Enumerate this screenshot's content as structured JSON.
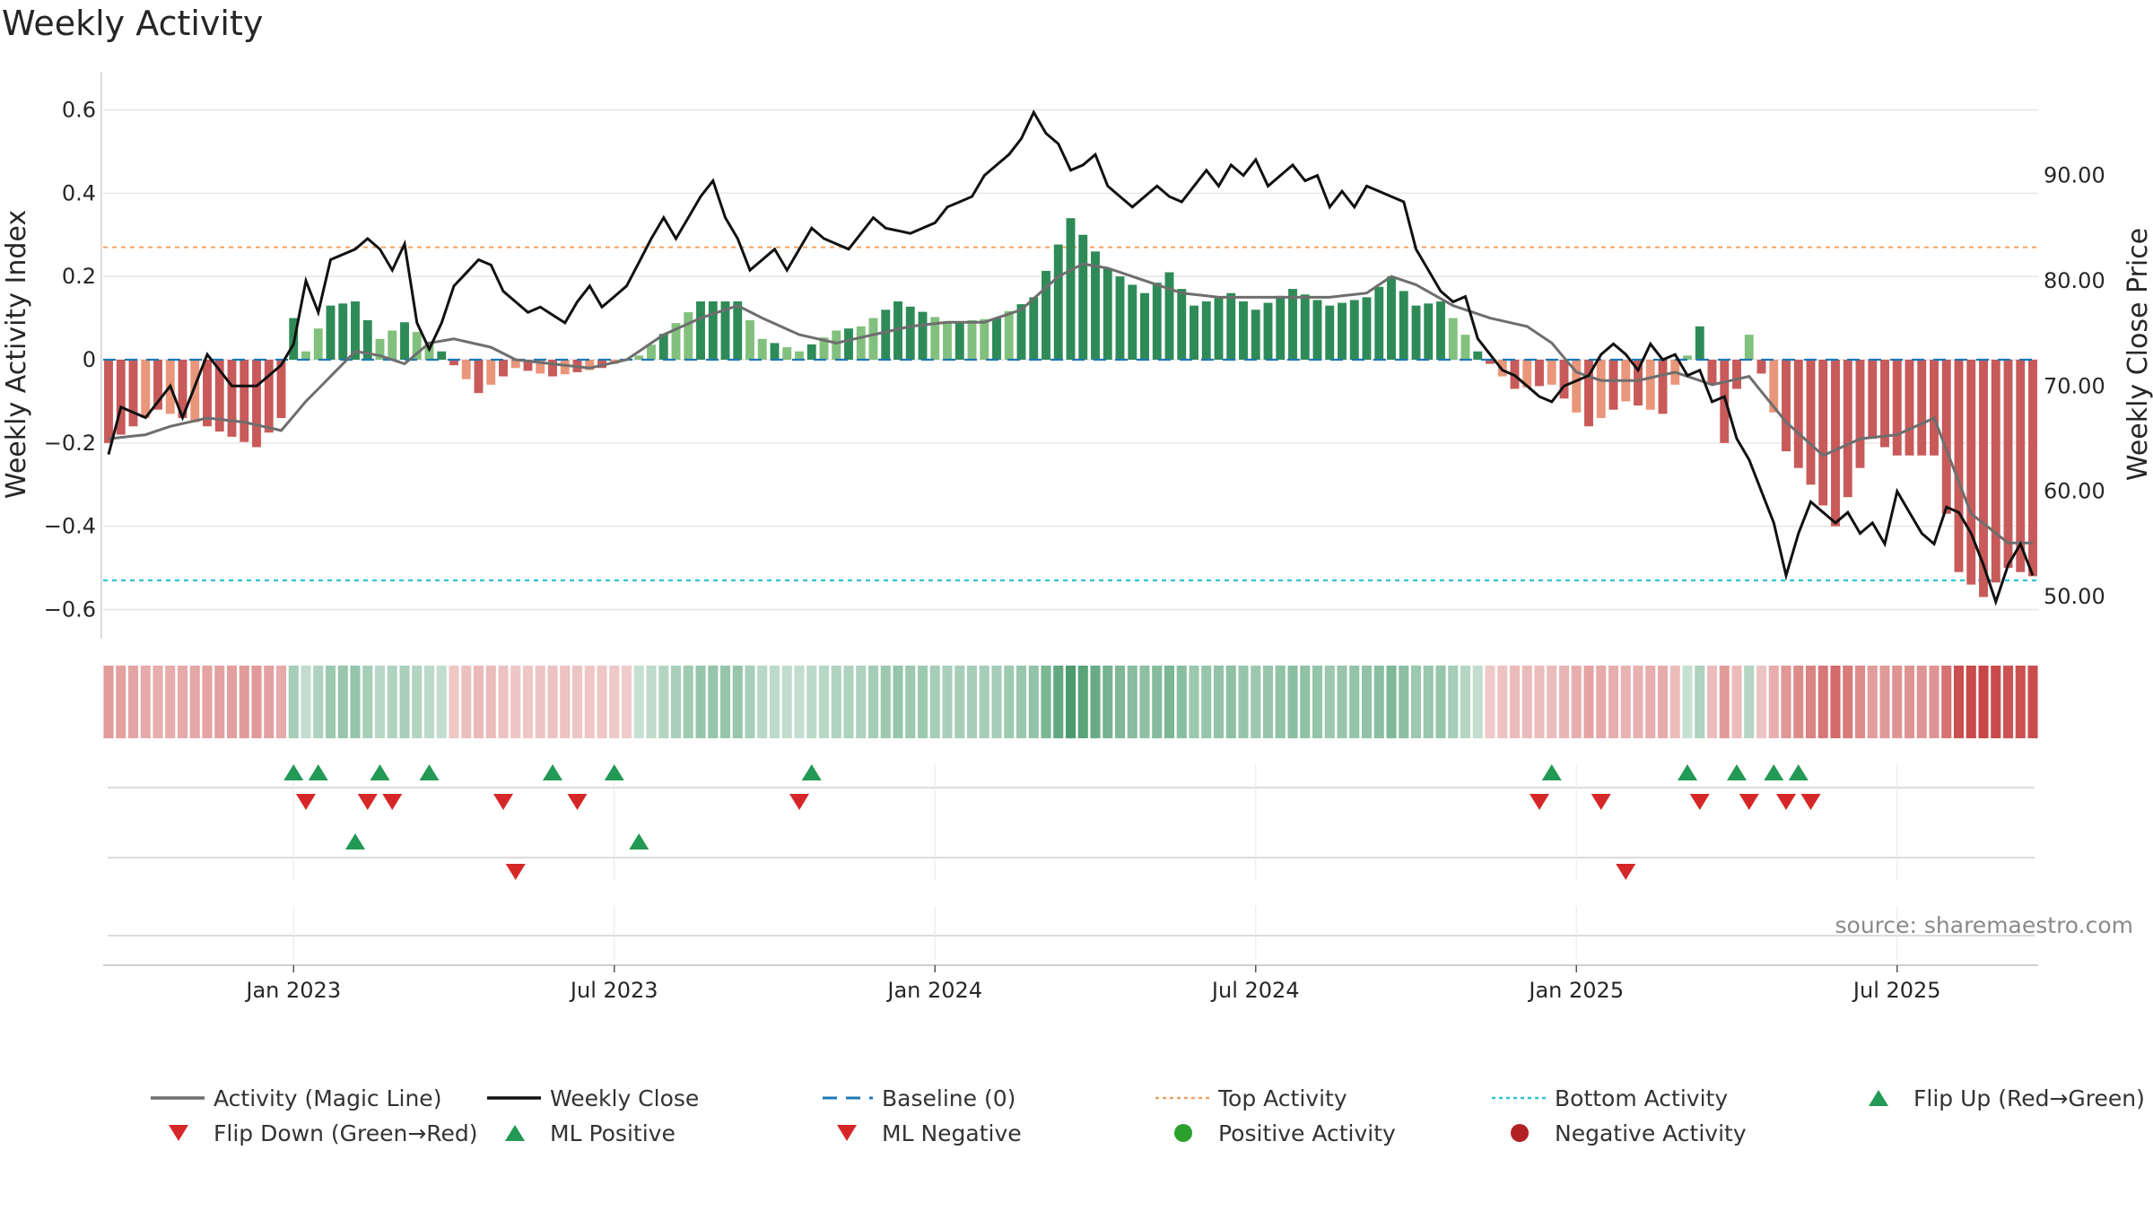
{
  "chart_data": {
    "type": "bar",
    "title": "Weekly Activity",
    "ylabel_left": "Weekly Activity Index",
    "ylabel_right": "Weekly Close Price",
    "ylim_left": [
      -0.67,
      0.67
    ],
    "ylim_right": [
      46.0,
      99.0
    ],
    "y_ticks_left": [
      {
        "v": 0.6,
        "label": "0.6"
      },
      {
        "v": 0.4,
        "label": "0.4"
      },
      {
        "v": 0.2,
        "label": "0.2"
      },
      {
        "v": 0,
        "label": "0"
      },
      {
        "v": -0.2,
        "label": "−0.2"
      },
      {
        "v": -0.4,
        "label": "−0.4"
      },
      {
        "v": -0.6,
        "label": "−0.6"
      }
    ],
    "y_ticks_right": [
      {
        "v": 90,
        "label": "90.00"
      },
      {
        "v": 80,
        "label": "80.00"
      },
      {
        "v": 70,
        "label": "70.00"
      },
      {
        "v": 60,
        "label": "60.00"
      },
      {
        "v": 50,
        "label": "50.00"
      }
    ],
    "x_ticks": [
      {
        "week": 15,
        "label": "Jan 2023"
      },
      {
        "week": 41,
        "label": "Jul 2023"
      },
      {
        "week": 67,
        "label": "Jan 2024"
      },
      {
        "week": 93,
        "label": "Jul 2024"
      },
      {
        "week": 119,
        "label": "Jan 2025"
      },
      {
        "week": 145,
        "label": "Jul 2025"
      }
    ],
    "weeks": 157,
    "top_activity": 0.27,
    "bottom_activity": -0.53,
    "baseline": 0,
    "anchors": {
      "activity": [
        [
          0,
          -0.2
        ],
        [
          4,
          -0.12
        ],
        [
          8,
          -0.16
        ],
        [
          12,
          -0.21
        ],
        [
          14,
          -0.14
        ],
        [
          15,
          0.1
        ],
        [
          16,
          0.02
        ],
        [
          18,
          0.13
        ],
        [
          20,
          0.14
        ],
        [
          22,
          0.05
        ],
        [
          24,
          0.09
        ],
        [
          27,
          0.02
        ],
        [
          30,
          -0.08
        ],
        [
          33,
          -0.02
        ],
        [
          36,
          -0.04
        ],
        [
          40,
          -0.02
        ],
        [
          43,
          0.01
        ],
        [
          48,
          0.14
        ],
        [
          51,
          0.14
        ],
        [
          53,
          0.05
        ],
        [
          56,
          0.02
        ],
        [
          59,
          0.07
        ],
        [
          61,
          0.08
        ],
        [
          64,
          0.14
        ],
        [
          68,
          0.09
        ],
        [
          72,
          0.1
        ],
        [
          75,
          0.15
        ],
        [
          78,
          0.34
        ],
        [
          81,
          0.22
        ],
        [
          84,
          0.16
        ],
        [
          86,
          0.21
        ],
        [
          88,
          0.13
        ],
        [
          91,
          0.16
        ],
        [
          93,
          0.12
        ],
        [
          96,
          0.17
        ],
        [
          99,
          0.13
        ],
        [
          102,
          0.15
        ],
        [
          104,
          0.2
        ],
        [
          106,
          0.13
        ],
        [
          108,
          0.14
        ],
        [
          111,
          0.02
        ],
        [
          114,
          -0.07
        ],
        [
          117,
          -0.06
        ],
        [
          120,
          -0.16
        ],
        [
          123,
          -0.1
        ],
        [
          126,
          -0.13
        ],
        [
          129,
          0.08
        ],
        [
          131,
          -0.2
        ],
        [
          133,
          0.06
        ],
        [
          136,
          -0.22
        ],
        [
          138,
          -0.3
        ],
        [
          140,
          -0.4
        ],
        [
          143,
          -0.19
        ],
        [
          145,
          -0.23
        ],
        [
          148,
          -0.23
        ],
        [
          150,
          -0.51
        ],
        [
          152,
          -0.57
        ],
        [
          154,
          -0.5
        ],
        [
          156,
          -0.52
        ]
      ],
      "magic": [
        [
          0,
          -0.19
        ],
        [
          3,
          -0.18
        ],
        [
          5,
          -0.16
        ],
        [
          8,
          -0.14
        ],
        [
          11,
          -0.15
        ],
        [
          14,
          -0.17
        ],
        [
          16,
          -0.1
        ],
        [
          18,
          -0.04
        ],
        [
          20,
          0.02
        ],
        [
          22,
          0.01
        ],
        [
          24,
          -0.01
        ],
        [
          26,
          0.04
        ],
        [
          28,
          0.05
        ],
        [
          31,
          0.03
        ],
        [
          33,
          0.0
        ],
        [
          36,
          -0.01
        ],
        [
          39,
          -0.02
        ],
        [
          42,
          0.0
        ],
        [
          45,
          0.06
        ],
        [
          48,
          0.1
        ],
        [
          51,
          0.13
        ],
        [
          53,
          0.1
        ],
        [
          56,
          0.06
        ],
        [
          59,
          0.04
        ],
        [
          62,
          0.06
        ],
        [
          65,
          0.08
        ],
        [
          68,
          0.09
        ],
        [
          71,
          0.09
        ],
        [
          74,
          0.12
        ],
        [
          77,
          0.2
        ],
        [
          79,
          0.23
        ],
        [
          81,
          0.22
        ],
        [
          84,
          0.19
        ],
        [
          87,
          0.16
        ],
        [
          90,
          0.15
        ],
        [
          93,
          0.15
        ],
        [
          96,
          0.15
        ],
        [
          99,
          0.15
        ],
        [
          102,
          0.16
        ],
        [
          104,
          0.2
        ],
        [
          106,
          0.18
        ],
        [
          109,
          0.13
        ],
        [
          112,
          0.1
        ],
        [
          115,
          0.08
        ],
        [
          117,
          0.04
        ],
        [
          119,
          -0.03
        ],
        [
          121,
          -0.05
        ],
        [
          124,
          -0.05
        ],
        [
          127,
          -0.03
        ],
        [
          130,
          -0.06
        ],
        [
          133,
          -0.04
        ],
        [
          136,
          -0.15
        ],
        [
          139,
          -0.23
        ],
        [
          142,
          -0.19
        ],
        [
          145,
          -0.18
        ],
        [
          148,
          -0.14
        ],
        [
          151,
          -0.37
        ],
        [
          154,
          -0.44
        ],
        [
          156,
          -0.44
        ]
      ],
      "close": [
        [
          0,
          63.5
        ],
        [
          1,
          68
        ],
        [
          3,
          67
        ],
        [
          5,
          70
        ],
        [
          6,
          67
        ],
        [
          8,
          73
        ],
        [
          10,
          70
        ],
        [
          12,
          70
        ],
        [
          14,
          72
        ],
        [
          15,
          74
        ],
        [
          16,
          80
        ],
        [
          17,
          77
        ],
        [
          18,
          82
        ],
        [
          20,
          83
        ],
        [
          21,
          84
        ],
        [
          22,
          83
        ],
        [
          23,
          81
        ],
        [
          24,
          83.5
        ],
        [
          25,
          76
        ],
        [
          26,
          73.5
        ],
        [
          27,
          76
        ],
        [
          28,
          79.5
        ],
        [
          30,
          82
        ],
        [
          31,
          81.5
        ],
        [
          32,
          79
        ],
        [
          34,
          77
        ],
        [
          35,
          77.5
        ],
        [
          37,
          76
        ],
        [
          38,
          78
        ],
        [
          39,
          79.5
        ],
        [
          40,
          77.5
        ],
        [
          42,
          79.5
        ],
        [
          44,
          84
        ],
        [
          45,
          86
        ],
        [
          46,
          84
        ],
        [
          47,
          86
        ],
        [
          48,
          88
        ],
        [
          49,
          89.5
        ],
        [
          50,
          86
        ],
        [
          51,
          84
        ],
        [
          52,
          81
        ],
        [
          54,
          83
        ],
        [
          55,
          81
        ],
        [
          57,
          85
        ],
        [
          58,
          84
        ],
        [
          60,
          83
        ],
        [
          62,
          86
        ],
        [
          63,
          85
        ],
        [
          65,
          84.5
        ],
        [
          67,
          85.5
        ],
        [
          68,
          87
        ],
        [
          70,
          88
        ],
        [
          71,
          90
        ],
        [
          72,
          91
        ],
        [
          73,
          92
        ],
        [
          74,
          93.5
        ],
        [
          75,
          96
        ],
        [
          76,
          94
        ],
        [
          77,
          93
        ],
        [
          78,
          90.5
        ],
        [
          79,
          91
        ],
        [
          80,
          92
        ],
        [
          81,
          89
        ],
        [
          82,
          88
        ],
        [
          83,
          87
        ],
        [
          84,
          88
        ],
        [
          85,
          89
        ],
        [
          86,
          88
        ],
        [
          87,
          87.5
        ],
        [
          88,
          89
        ],
        [
          89,
          90.5
        ],
        [
          90,
          89
        ],
        [
          91,
          91
        ],
        [
          92,
          90
        ],
        [
          93,
          91.5
        ],
        [
          94,
          89
        ],
        [
          95,
          90
        ],
        [
          96,
          91
        ],
        [
          97,
          89.5
        ],
        [
          98,
          90
        ],
        [
          99,
          87
        ],
        [
          100,
          88.5
        ],
        [
          101,
          87
        ],
        [
          102,
          89
        ],
        [
          104,
          88
        ],
        [
          105,
          87.5
        ],
        [
          106,
          83
        ],
        [
          108,
          79
        ],
        [
          109,
          78
        ],
        [
          110,
          78.5
        ],
        [
          111,
          74.5
        ],
        [
          113,
          71.5
        ],
        [
          114,
          71
        ],
        [
          116,
          69
        ],
        [
          117,
          68.5
        ],
        [
          118,
          70
        ],
        [
          119,
          70.5
        ],
        [
          120,
          71
        ],
        [
          121,
          73
        ],
        [
          122,
          74
        ],
        [
          123,
          73
        ],
        [
          124,
          71.5
        ],
        [
          125,
          74
        ],
        [
          126,
          72.5
        ],
        [
          127,
          73
        ],
        [
          128,
          71
        ],
        [
          129,
          71.5
        ],
        [
          130,
          68.5
        ],
        [
          131,
          69
        ],
        [
          132,
          65
        ],
        [
          133,
          63
        ],
        [
          134,
          60
        ],
        [
          135,
          57
        ],
        [
          136,
          52
        ],
        [
          137,
          56
        ],
        [
          138,
          59
        ],
        [
          139,
          58
        ],
        [
          140,
          57
        ],
        [
          141,
          58
        ],
        [
          142,
          56
        ],
        [
          143,
          57
        ],
        [
          144,
          55
        ],
        [
          145,
          60
        ],
        [
          146,
          58
        ],
        [
          147,
          56
        ],
        [
          148,
          55
        ],
        [
          149,
          58.5
        ],
        [
          150,
          58
        ],
        [
          151,
          56
        ],
        [
          152,
          53
        ],
        [
          153,
          49.5
        ],
        [
          154,
          53
        ],
        [
          155,
          55
        ],
        [
          156,
          52
        ]
      ]
    },
    "flip_up": [
      15,
      17,
      22,
      26,
      36,
      41,
      57,
      117,
      128,
      132,
      135,
      137
    ],
    "flip_down": [
      16,
      21,
      23,
      32,
      38,
      56,
      116,
      121,
      129,
      133,
      136,
      138
    ],
    "ml_positive": [
      20,
      43
    ],
    "ml_negative": [
      33,
      123
    ],
    "source_note": "source: sharemaestro.com",
    "legend": [
      {
        "label": "Activity (Magic Line)",
        "kind": "line",
        "color": "#6e6e6e"
      },
      {
        "label": "Weekly Close",
        "kind": "line",
        "color": "#111111"
      },
      {
        "label": "Baseline (0)",
        "kind": "dash",
        "color": "#1f77b4"
      },
      {
        "label": "Top Activity",
        "kind": "dot",
        "color": "#f4a261"
      },
      {
        "label": "Bottom Activity",
        "kind": "dot",
        "color": "#2ec4d6"
      },
      {
        "label": "Flip Up (Red→Green)",
        "kind": "tri-up",
        "color": "#229954"
      },
      {
        "label": "Flip Down (Green→Red)",
        "kind": "tri-down",
        "color": "#d62728"
      },
      {
        "label": "ML Positive",
        "kind": "tri-up",
        "color": "#229954"
      },
      {
        "label": "ML Negative",
        "kind": "tri-down",
        "color": "#d62728"
      },
      {
        "label": "Positive Activity",
        "kind": "circle",
        "color": "#2ca02c"
      },
      {
        "label": "Negative Activity",
        "kind": "circle",
        "color": "#b22222"
      }
    ]
  },
  "colors": {
    "pos_strong": "#2e8b57",
    "pos_light": "#82c07e",
    "neg_strong": "#c85a5a",
    "neg_light": "#e9967a",
    "close": "#111111",
    "magic": "#6e6e6e"
  }
}
